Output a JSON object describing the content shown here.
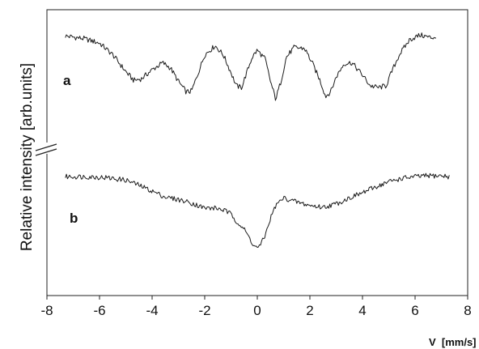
{
  "chart_data": {
    "type": "line",
    "title": "",
    "xlabel": "V  [mm/s]",
    "ylabel": "Relative intensity [arb.units]",
    "xlim": [
      -8,
      8
    ],
    "xticks": [
      -8,
      -6,
      -4,
      -2,
      0,
      2,
      4,
      6,
      8
    ],
    "y_axis_break": true,
    "grid": false,
    "series": [
      {
        "name": "a",
        "x": [
          -7.3,
          -6.6,
          -6.0,
          -5.5,
          -5.0,
          -4.7,
          -4.4,
          -4.0,
          -3.6,
          -3.3,
          -3.0,
          -2.7,
          -2.5,
          -2.3,
          -2.0,
          -1.6,
          -1.3,
          -1.0,
          -0.8,
          -0.6,
          -0.4,
          -0.2,
          0.0,
          0.3,
          0.5,
          0.7,
          0.9,
          1.1,
          1.4,
          1.8,
          2.1,
          2.4,
          2.6,
          2.8,
          3.0,
          3.3,
          3.6,
          4.0,
          4.3,
          4.6,
          4.9,
          5.1,
          5.4,
          5.8,
          6.2,
          6.6,
          6.8
        ],
        "values": [
          0.96,
          0.93,
          0.88,
          0.75,
          0.56,
          0.46,
          0.48,
          0.58,
          0.66,
          0.6,
          0.45,
          0.33,
          0.34,
          0.5,
          0.75,
          0.85,
          0.75,
          0.55,
          0.4,
          0.38,
          0.55,
          0.72,
          0.8,
          0.7,
          0.45,
          0.25,
          0.45,
          0.72,
          0.83,
          0.82,
          0.65,
          0.45,
          0.28,
          0.34,
          0.5,
          0.65,
          0.66,
          0.52,
          0.4,
          0.38,
          0.4,
          0.55,
          0.75,
          0.92,
          0.97,
          0.94,
          0.95
        ]
      },
      {
        "name": "b",
        "x": [
          -7.3,
          -6.5,
          -5.8,
          -5.0,
          -4.5,
          -4.0,
          -3.5,
          -3.0,
          -2.5,
          -2.0,
          -1.6,
          -1.3,
          -1.0,
          -0.8,
          -0.5,
          -0.3,
          -0.1,
          0.1,
          0.3,
          0.5,
          0.7,
          1.0,
          1.4,
          2.0,
          2.5,
          3.0,
          3.5,
          4.0,
          4.5,
          5.0,
          5.5,
          6.0,
          6.5,
          7.0,
          7.3
        ],
        "values": [
          0.97,
          0.97,
          0.96,
          0.93,
          0.87,
          0.8,
          0.73,
          0.7,
          0.66,
          0.6,
          0.6,
          0.58,
          0.53,
          0.45,
          0.35,
          0.25,
          0.14,
          0.15,
          0.28,
          0.48,
          0.63,
          0.72,
          0.68,
          0.63,
          0.61,
          0.65,
          0.72,
          0.78,
          0.85,
          0.91,
          0.95,
          0.97,
          0.98,
          0.98,
          0.97
        ]
      }
    ]
  }
}
